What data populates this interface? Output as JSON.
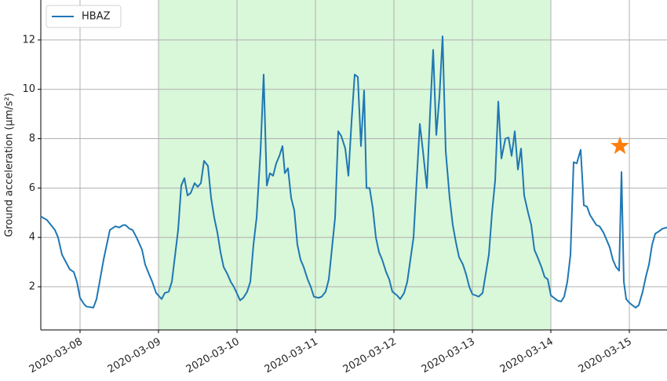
{
  "chart_data": {
    "type": "line",
    "ylabel": "Ground acceleration (μm/s²)",
    "x": [
      7.5,
      7.58,
      7.63,
      7.68,
      7.72,
      7.77,
      7.82,
      7.87,
      7.92,
      7.96,
      8.0,
      8.05,
      8.08,
      8.17,
      8.21,
      8.25,
      8.3,
      8.38,
      8.45,
      8.5,
      8.55,
      8.58,
      8.63,
      8.67,
      8.72,
      8.79,
      8.83,
      8.88,
      8.92,
      8.97,
      9.04,
      9.08,
      9.13,
      9.17,
      9.25,
      9.29,
      9.33,
      9.37,
      9.41,
      9.46,
      9.5,
      9.54,
      9.58,
      9.63,
      9.67,
      9.71,
      9.75,
      9.79,
      9.83,
      9.88,
      9.92,
      9.96,
      10.04,
      10.08,
      10.13,
      10.17,
      10.21,
      10.25,
      10.3,
      10.34,
      10.38,
      10.42,
      10.46,
      10.5,
      10.54,
      10.58,
      10.61,
      10.65,
      10.69,
      10.73,
      10.77,
      10.81,
      10.85,
      10.9,
      10.94,
      10.98,
      11.04,
      11.08,
      11.13,
      11.17,
      11.25,
      11.29,
      11.33,
      11.38,
      11.42,
      11.46,
      11.5,
      11.54,
      11.58,
      11.62,
      11.65,
      11.69,
      11.73,
      11.77,
      11.81,
      11.85,
      11.9,
      11.94,
      11.98,
      12.04,
      12.08,
      12.13,
      12.17,
      12.25,
      12.33,
      12.37,
      12.42,
      12.46,
      12.5,
      12.54,
      12.58,
      12.62,
      12.66,
      12.71,
      12.75,
      12.79,
      12.83,
      12.88,
      12.92,
      12.96,
      13.0,
      13.04,
      13.08,
      13.13,
      13.21,
      13.25,
      13.29,
      13.33,
      13.37,
      13.42,
      13.46,
      13.5,
      13.54,
      13.58,
      13.62,
      13.66,
      13.71,
      13.75,
      13.79,
      13.83,
      13.88,
      13.92,
      13.96,
      14.0,
      14.04,
      14.08,
      14.13,
      14.17,
      14.21,
      14.25,
      14.29,
      14.33,
      14.38,
      14.42,
      14.46,
      14.5,
      14.54,
      14.58,
      14.62,
      14.67,
      14.71,
      14.75,
      14.79,
      14.83,
      14.87,
      14.9,
      14.93,
      14.96,
      15.0,
      15.04,
      15.08,
      15.12,
      15.17,
      15.21,
      15.25,
      15.29,
      15.33,
      15.38,
      15.42,
      15.48
    ],
    "series": [
      {
        "name": "HBAZ",
        "color": "#1f77b4",
        "values": [
          4.85,
          4.7,
          4.5,
          4.3,
          4.0,
          3.3,
          3.0,
          2.7,
          2.6,
          2.2,
          1.55,
          1.3,
          1.2,
          1.15,
          1.5,
          2.2,
          3.1,
          4.3,
          4.45,
          4.4,
          4.5,
          4.5,
          4.35,
          4.3,
          4.0,
          3.5,
          2.9,
          2.5,
          2.2,
          1.75,
          1.5,
          1.75,
          1.8,
          2.2,
          4.3,
          6.1,
          6.4,
          5.7,
          5.8,
          6.2,
          6.05,
          6.2,
          7.1,
          6.9,
          5.6,
          4.8,
          4.2,
          3.4,
          2.8,
          2.5,
          2.2,
          2.0,
          1.45,
          1.55,
          1.8,
          2.2,
          3.7,
          4.8,
          7.5,
          10.6,
          6.1,
          6.6,
          6.5,
          7.0,
          7.3,
          7.7,
          6.6,
          6.8,
          5.6,
          5.1,
          3.7,
          3.1,
          2.8,
          2.3,
          2.0,
          1.6,
          1.55,
          1.6,
          1.8,
          2.3,
          4.8,
          8.3,
          8.1,
          7.6,
          6.5,
          8.7,
          10.6,
          10.5,
          7.7,
          9.95,
          6.0,
          6.0,
          5.2,
          4.0,
          3.4,
          3.1,
          2.6,
          2.3,
          1.8,
          1.65,
          1.5,
          1.75,
          2.2,
          4.0,
          8.6,
          7.5,
          6.0,
          9.0,
          11.6,
          8.15,
          9.7,
          12.15,
          7.5,
          5.6,
          4.5,
          3.8,
          3.2,
          2.9,
          2.5,
          2.0,
          1.7,
          1.65,
          1.6,
          1.75,
          3.3,
          5.0,
          6.3,
          9.5,
          7.2,
          8.0,
          8.05,
          7.3,
          8.3,
          6.75,
          7.6,
          5.7,
          5.0,
          4.5,
          3.5,
          3.2,
          2.8,
          2.4,
          2.3,
          1.65,
          1.55,
          1.45,
          1.4,
          1.6,
          2.2,
          3.3,
          7.05,
          7.0,
          7.55,
          5.3,
          5.25,
          4.9,
          4.7,
          4.5,
          4.45,
          4.2,
          3.9,
          3.6,
          3.1,
          2.8,
          2.65,
          6.65,
          2.2,
          1.5,
          1.35,
          1.25,
          1.15,
          1.25,
          1.8,
          2.4,
          2.9,
          3.7,
          4.15,
          4.25,
          4.35,
          4.4
        ]
      }
    ],
    "marker": {
      "x": 14.88,
      "y": 7.7,
      "color": "#ff7f0e",
      "shape": "star"
    },
    "shaded": {
      "range": [
        9,
        14
      ],
      "color": "#d9f7d9"
    },
    "xlim": [
      7.5,
      15.48
    ],
    "ylim": [
      0.25,
      13.62
    ],
    "xticks": [
      {
        "value": 8,
        "label": "2020-03-08"
      },
      {
        "value": 9,
        "label": "2020-03-09"
      },
      {
        "value": 10,
        "label": "2020-03-10"
      },
      {
        "value": 11,
        "label": "2020-03-11"
      },
      {
        "value": 12,
        "label": "2020-03-12"
      },
      {
        "value": 13,
        "label": "2020-03-13"
      },
      {
        "value": 14,
        "label": "2020-03-14"
      },
      {
        "value": 15,
        "label": "2020-03-15"
      }
    ],
    "yticks": [
      2,
      4,
      6,
      8,
      10,
      12
    ],
    "grid": true,
    "legend": "upper left"
  }
}
